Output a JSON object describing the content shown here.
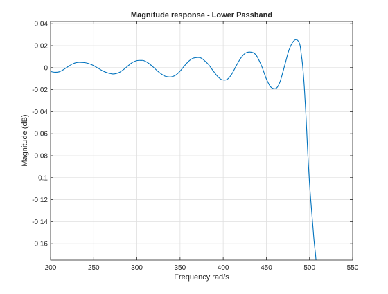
{
  "chart_data": {
    "type": "line",
    "title": "Magnitude response - Lower Passband",
    "xlabel": "Frequency rad/s",
    "ylabel": "Magnitude (dB)",
    "xlim": [
      200,
      550
    ],
    "ylim": [
      -0.175,
      0.042
    ],
    "xticks": [
      200,
      250,
      300,
      350,
      400,
      450,
      500,
      550
    ],
    "xtick_labels": [
      "200",
      "250",
      "300",
      "350",
      "400",
      "450",
      "500",
      "550"
    ],
    "yticks": [
      0.04,
      0.02,
      0,
      -0.02,
      -0.04,
      -0.06,
      -0.08,
      -0.1,
      -0.12,
      -0.14,
      -0.16
    ],
    "ytick_labels": [
      "0.04",
      "0.02",
      "0",
      "-0.02",
      "-0.04",
      "-0.06",
      "-0.08",
      "-0.1",
      "-0.12",
      "-0.14",
      "-0.16"
    ],
    "grid": true,
    "series_color": "#0072bd",
    "series": [
      {
        "x": [
          200,
          205,
          210,
          215,
          220,
          225,
          230,
          235,
          240,
          245,
          250,
          255,
          260,
          265,
          270,
          274,
          280,
          285,
          290,
          295,
          300,
          305,
          308,
          312,
          318,
          325,
          332,
          338,
          341,
          345,
          350,
          355,
          360,
          365,
          370,
          374,
          378,
          383,
          388,
          393,
          398,
          403,
          406,
          410,
          415,
          420,
          425,
          430,
          435,
          438,
          441,
          445,
          450,
          455,
          460,
          463,
          466,
          469,
          472,
          476,
          480,
          484,
          487,
          489,
          490,
          492,
          494,
          496,
          498,
          500,
          502,
          504,
          505,
          506,
          507,
          508
        ],
        "y": [
          -0.0035,
          -0.0042,
          -0.0038,
          -0.0018,
          0.0008,
          0.0032,
          0.0046,
          0.0048,
          0.0045,
          0.0035,
          0.0018,
          -0.0005,
          -0.0028,
          -0.0045,
          -0.0055,
          -0.0057,
          -0.0042,
          -0.0015,
          0.0018,
          0.0048,
          0.0064,
          0.0066,
          0.0064,
          0.0048,
          0.0012,
          -0.0038,
          -0.0075,
          -0.0085,
          -0.0082,
          -0.0068,
          -0.0032,
          0.0015,
          0.0058,
          0.0085,
          0.0092,
          0.0088,
          0.0066,
          0.0028,
          -0.0025,
          -0.0075,
          -0.0108,
          -0.0112,
          -0.0098,
          -0.0058,
          0.0015,
          0.0082,
          0.0128,
          0.0142,
          0.0135,
          0.0115,
          0.0075,
          0.0005,
          -0.0102,
          -0.0175,
          -0.0192,
          -0.0175,
          -0.0125,
          -0.0045,
          0.0042,
          0.0155,
          0.0225,
          0.0255,
          0.0242,
          0.0205,
          0.015,
          0.002,
          -0.018,
          -0.045,
          -0.078,
          -0.105,
          -0.126,
          -0.145,
          -0.155,
          -0.163,
          -0.17,
          -0.18
        ]
      }
    ]
  }
}
